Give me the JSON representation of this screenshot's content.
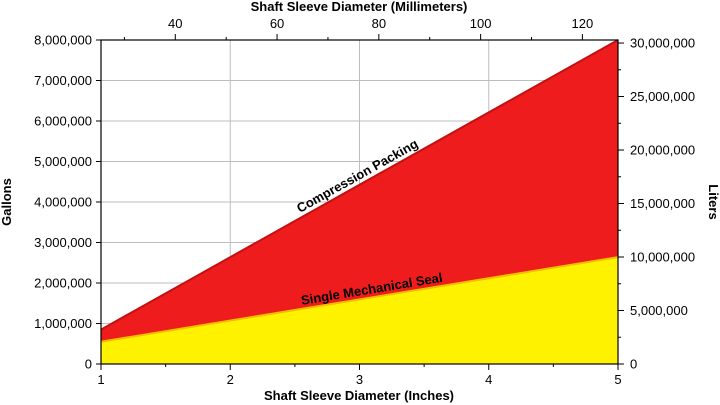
{
  "chart_data": {
    "type": "area",
    "x_bottom": {
      "label": "Shaft Sleeve Diameter (Inches)",
      "range": [
        1,
        5
      ],
      "ticks": [
        1,
        2,
        3,
        4,
        5
      ],
      "tick_labels": [
        "1",
        "2",
        "3",
        "4",
        "5"
      ]
    },
    "x_top": {
      "label": "Shaft Sleeve Diameter (Millimeters)",
      "range": [
        25.4,
        127
      ],
      "ticks": [
        40,
        60,
        80,
        100,
        120
      ],
      "tick_labels": [
        "40",
        "60",
        "80",
        "100",
        "120"
      ]
    },
    "y_left": {
      "label": "Gallons",
      "range": [
        0,
        8000000
      ],
      "ticks": [
        0,
        1000000,
        2000000,
        3000000,
        4000000,
        5000000,
        6000000,
        7000000,
        8000000
      ],
      "tick_labels": [
        "0",
        "1,000,000",
        "2,000,000",
        "3,000,000",
        "4,000,000",
        "5,000,000",
        "6,000,000",
        "7,000,000",
        "8,000,000"
      ]
    },
    "y_right": {
      "label": "Liters",
      "range": [
        0,
        30283294
      ],
      "ticks": [
        0,
        5000000,
        10000000,
        15000000,
        20000000,
        25000000,
        30000000
      ],
      "tick_labels": [
        "0",
        "5,000,000",
        "10,000,000",
        "15,000,000",
        "20,000,000",
        "25,000,000",
        "30,000,000"
      ]
    },
    "series": [
      {
        "name": "Compression Packing",
        "x": [
          1,
          5
        ],
        "y": [
          850000,
          8000000
        ],
        "color": "#ee1c1c",
        "line_color": "#c41010"
      },
      {
        "name": "Single Mechanical Seal",
        "x": [
          1,
          5
        ],
        "y": [
          550000,
          2640000
        ],
        "color": "#fff200",
        "line_color": "#f0c000"
      }
    ],
    "grid": true,
    "legend": "inline labels on lines"
  }
}
